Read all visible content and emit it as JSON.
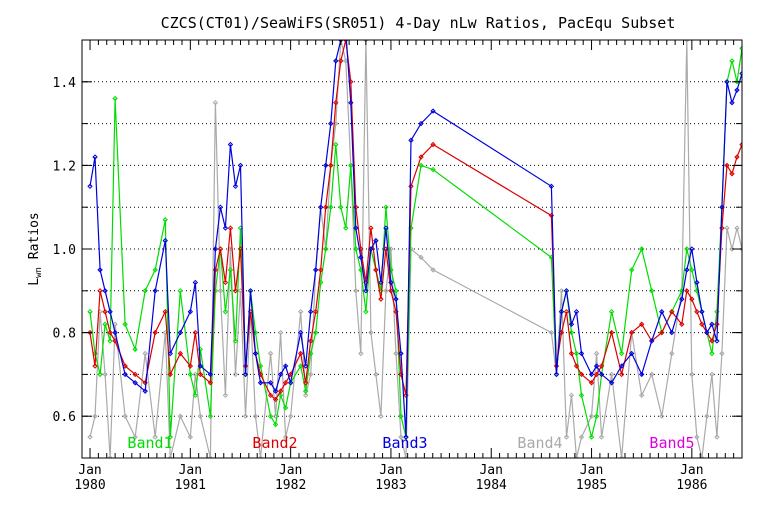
{
  "chart_data": {
    "type": "line",
    "title": "CZCS(CT01)/SeaWiFS(SR051) 4-Day nLw Ratios, PacEqu Subset",
    "ylabel": "L",
    "ylabel_sub": "wn",
    "ylabel_rest": " Ratios",
    "xlim": [
      1979.92,
      1986.5
    ],
    "ylim": [
      0.5,
      1.5
    ],
    "yticks": [
      0.6,
      0.8,
      1.0,
      1.2,
      1.4
    ],
    "ytick_labels": [
      "0.6",
      "0.8",
      "1.0",
      "1.2",
      "1.4"
    ],
    "minor_step": 0.1,
    "xtick_top": [
      "Jan",
      "Jan",
      "Jan",
      "Jan",
      "Jan",
      "Jan",
      "Jan"
    ],
    "xtick_bottom": [
      "1980",
      "1981",
      "1982",
      "1983",
      "1984",
      "1985",
      "1986"
    ],
    "xtick_years": [
      1980,
      1981,
      1982,
      1983,
      1984,
      1985,
      1986
    ],
    "grid": "horizontal dotted",
    "legend_position": "bottom inside plot",
    "series": [
      {
        "name": "Band1",
        "color": "#00dd00",
        "x": [
          1980.0,
          1980.05,
          1980.1,
          1980.15,
          1980.2,
          1980.25,
          1980.35,
          1980.45,
          1980.55,
          1980.65,
          1980.75,
          1980.8,
          1980.9,
          1981.0,
          1981.05,
          1981.1,
          1981.2,
          1981.25,
          1981.3,
          1981.35,
          1981.4,
          1981.45,
          1981.5,
          1981.55,
          1981.6,
          1981.65,
          1981.7,
          1981.8,
          1981.85,
          1981.9,
          1981.95,
          1982.0,
          1982.1,
          1982.15,
          1982.2,
          1982.25,
          1982.3,
          1982.35,
          1982.4,
          1982.45,
          1982.5,
          1982.55,
          1982.6,
          1982.65,
          1982.7,
          1982.75,
          1982.8,
          1982.85,
          1982.9,
          1982.95,
          1983.0,
          1983.05,
          1983.1,
          1983.15,
          1983.2,
          1983.3,
          1983.42,
          1984.6,
          1984.65,
          1984.7,
          1984.75,
          1984.8,
          1984.85,
          1984.9,
          1985.0,
          1985.05,
          1985.1,
          1985.2,
          1985.3,
          1985.4,
          1985.5,
          1985.6,
          1985.7,
          1985.8,
          1985.9,
          1985.95,
          1986.0,
          1986.05,
          1986.1,
          1986.15,
          1986.2,
          1986.25,
          1986.3,
          1986.35,
          1986.4,
          1986.45,
          1986.5
        ],
        "values": [
          0.85,
          0.75,
          0.7,
          0.82,
          0.78,
          1.36,
          0.82,
          0.76,
          0.9,
          0.95,
          1.07,
          0.55,
          0.9,
          0.7,
          0.65,
          0.76,
          0.6,
          0.9,
          1.0,
          0.85,
          0.95,
          0.78,
          1.05,
          0.7,
          0.9,
          0.8,
          0.72,
          0.6,
          0.58,
          0.65,
          0.62,
          0.68,
          0.72,
          0.66,
          0.75,
          0.8,
          0.92,
          1.0,
          1.1,
          1.25,
          1.1,
          1.05,
          1.2,
          1.0,
          0.95,
          0.85,
          1.0,
          0.95,
          0.9,
          1.1,
          0.95,
          0.9,
          0.6,
          0.55,
          1.05,
          1.2,
          1.19,
          0.98,
          0.7,
          0.85,
          0.9,
          0.8,
          0.75,
          0.65,
          0.55,
          0.6,
          0.7,
          0.85,
          0.75,
          0.95,
          1.0,
          0.9,
          0.8,
          0.85,
          0.9,
          1.0,
          0.95,
          0.9,
          0.85,
          0.8,
          0.75,
          0.85,
          1.1,
          1.4,
          1.45,
          1.4,
          1.48
        ]
      },
      {
        "name": "Band2",
        "color": "#dd0000",
        "x": [
          1980.0,
          1980.05,
          1980.1,
          1980.15,
          1980.2,
          1980.25,
          1980.35,
          1980.45,
          1980.55,
          1980.65,
          1980.75,
          1980.8,
          1980.9,
          1981.0,
          1981.05,
          1981.1,
          1981.2,
          1981.25,
          1981.3,
          1981.35,
          1981.4,
          1981.45,
          1981.5,
          1981.55,
          1981.6,
          1981.65,
          1981.7,
          1981.8,
          1981.85,
          1981.9,
          1981.95,
          1982.0,
          1982.1,
          1982.15,
          1982.2,
          1982.25,
          1982.3,
          1982.35,
          1982.4,
          1982.45,
          1982.5,
          1982.55,
          1982.6,
          1982.65,
          1982.7,
          1982.75,
          1982.8,
          1982.85,
          1982.9,
          1982.95,
          1983.0,
          1983.05,
          1983.1,
          1983.15,
          1983.2,
          1983.3,
          1983.42,
          1984.6,
          1984.65,
          1984.7,
          1984.75,
          1984.8,
          1984.85,
          1984.9,
          1985.0,
          1985.05,
          1985.1,
          1985.2,
          1985.3,
          1985.4,
          1985.5,
          1985.6,
          1985.7,
          1985.8,
          1985.9,
          1985.95,
          1986.0,
          1986.05,
          1986.1,
          1986.15,
          1986.2,
          1986.25,
          1986.3,
          1986.35,
          1986.4,
          1986.45,
          1986.5
        ],
        "values": [
          0.8,
          0.72,
          0.9,
          0.85,
          0.8,
          0.78,
          0.72,
          0.7,
          0.68,
          0.8,
          0.85,
          0.7,
          0.75,
          0.72,
          0.8,
          0.7,
          0.68,
          0.95,
          1.0,
          0.92,
          1.05,
          0.9,
          1.0,
          0.72,
          0.85,
          0.75,
          0.7,
          0.65,
          0.64,
          0.66,
          0.68,
          0.7,
          0.75,
          0.68,
          0.78,
          0.85,
          0.95,
          1.1,
          1.2,
          1.35,
          1.45,
          1.5,
          1.4,
          1.1,
          1.0,
          0.92,
          1.05,
          0.95,
          0.88,
          1.0,
          0.9,
          0.85,
          0.7,
          0.65,
          1.15,
          1.22,
          1.25,
          1.08,
          0.72,
          0.8,
          0.85,
          0.75,
          0.72,
          0.7,
          0.68,
          0.7,
          0.72,
          0.8,
          0.7,
          0.8,
          0.82,
          0.78,
          0.8,
          0.85,
          0.82,
          0.9,
          0.88,
          0.85,
          0.82,
          0.8,
          0.78,
          0.82,
          1.05,
          1.2,
          1.18,
          1.22,
          1.25
        ]
      },
      {
        "name": "Band3",
        "color": "#0000dd",
        "x": [
          1980.0,
          1980.05,
          1980.1,
          1980.15,
          1980.2,
          1980.25,
          1980.35,
          1980.45,
          1980.55,
          1980.65,
          1980.75,
          1980.8,
          1980.9,
          1981.0,
          1981.05,
          1981.1,
          1981.2,
          1981.25,
          1981.3,
          1981.35,
          1981.4,
          1981.45,
          1981.5,
          1981.55,
          1981.6,
          1981.65,
          1981.7,
          1981.8,
          1981.85,
          1981.9,
          1981.95,
          1982.0,
          1982.1,
          1982.15,
          1982.2,
          1982.25,
          1982.3,
          1982.35,
          1982.4,
          1982.45,
          1982.5,
          1982.55,
          1982.6,
          1982.65,
          1982.7,
          1982.75,
          1982.8,
          1982.85,
          1982.9,
          1982.95,
          1983.0,
          1983.05,
          1983.1,
          1983.15,
          1983.2,
          1983.3,
          1983.42,
          1984.6,
          1984.65,
          1984.7,
          1984.75,
          1984.8,
          1984.85,
          1984.9,
          1985.0,
          1985.05,
          1985.1,
          1985.2,
          1985.3,
          1985.4,
          1985.5,
          1985.6,
          1985.7,
          1985.8,
          1985.9,
          1985.95,
          1986.0,
          1986.05,
          1986.1,
          1986.15,
          1986.2,
          1986.25,
          1986.3,
          1986.35,
          1986.4,
          1986.45,
          1986.5
        ],
        "values": [
          1.15,
          1.22,
          0.95,
          0.9,
          0.85,
          0.8,
          0.7,
          0.68,
          0.66,
          0.9,
          1.02,
          0.75,
          0.8,
          0.85,
          0.92,
          0.72,
          0.7,
          1.0,
          1.1,
          1.05,
          1.25,
          1.15,
          1.2,
          0.7,
          0.9,
          0.75,
          0.68,
          0.68,
          0.66,
          0.7,
          0.72,
          0.68,
          0.8,
          0.72,
          0.85,
          0.95,
          1.1,
          1.2,
          1.3,
          1.45,
          1.5,
          1.52,
          1.35,
          1.05,
          0.98,
          0.9,
          1.0,
          1.02,
          0.92,
          1.05,
          0.92,
          0.88,
          0.75,
          0.55,
          1.26,
          1.3,
          1.33,
          1.15,
          0.7,
          0.85,
          0.9,
          0.82,
          0.85,
          0.75,
          0.7,
          0.72,
          0.7,
          0.68,
          0.72,
          0.75,
          0.7,
          0.78,
          0.85,
          0.8,
          0.88,
          0.95,
          1.0,
          0.92,
          0.85,
          0.8,
          0.82,
          0.78,
          1.1,
          1.4,
          1.35,
          1.38,
          1.42
        ]
      },
      {
        "name": "Band4",
        "color": "#aaaaaa",
        "x": [
          1980.0,
          1980.05,
          1980.1,
          1980.15,
          1980.2,
          1980.25,
          1980.35,
          1980.45,
          1980.55,
          1980.65,
          1980.75,
          1980.8,
          1980.9,
          1981.0,
          1981.05,
          1981.1,
          1981.2,
          1981.25,
          1981.3,
          1981.35,
          1981.4,
          1981.45,
          1981.5,
          1981.55,
          1981.6,
          1981.65,
          1981.7,
          1981.8,
          1981.85,
          1981.9,
          1981.95,
          1982.0,
          1982.1,
          1982.15,
          1982.2,
          1982.25,
          1982.3,
          1982.35,
          1982.4,
          1982.45,
          1982.5,
          1982.55,
          1982.6,
          1982.65,
          1982.7,
          1982.75,
          1982.8,
          1982.85,
          1982.9,
          1982.95,
          1983.0,
          1983.05,
          1983.1,
          1983.15,
          1983.2,
          1983.3,
          1983.42,
          1984.6,
          1984.65,
          1984.7,
          1984.75,
          1984.8,
          1984.85,
          1984.9,
          1985.0,
          1985.05,
          1985.1,
          1985.2,
          1985.3,
          1985.4,
          1985.5,
          1985.6,
          1985.7,
          1985.8,
          1985.9,
          1985.95,
          1986.0,
          1986.05,
          1986.1,
          1986.15,
          1986.2,
          1986.25,
          1986.3,
          1986.35,
          1986.4,
          1986.45,
          1986.5
        ],
        "values": [
          0.55,
          0.6,
          0.85,
          0.7,
          0.5,
          0.82,
          0.6,
          0.55,
          0.75,
          0.55,
          0.8,
          0.5,
          0.6,
          0.55,
          0.7,
          0.6,
          0.5,
          1.35,
          0.9,
          0.65,
          1.0,
          0.7,
          0.9,
          0.6,
          0.85,
          0.6,
          0.5,
          0.75,
          0.6,
          0.8,
          0.55,
          0.6,
          0.85,
          0.65,
          0.7,
          0.95,
          1.1,
          1.0,
          1.2,
          1.3,
          1.5,
          1.45,
          1.2,
          0.9,
          0.75,
          1.5,
          0.8,
          0.7,
          0.6,
          0.9,
          1.0,
          0.75,
          0.55,
          0.5,
          1.0,
          0.98,
          0.95,
          0.8,
          0.7,
          0.9,
          0.55,
          0.65,
          0.5,
          0.55,
          0.6,
          0.75,
          0.55,
          0.7,
          0.5,
          0.8,
          0.65,
          0.7,
          0.6,
          0.75,
          0.9,
          1.5,
          0.7,
          0.55,
          0.5,
          0.6,
          0.7,
          0.55,
          0.75,
          1.05,
          1.0,
          1.05,
          1.0
        ]
      },
      {
        "name": "Band5",
        "color": "#dd00dd",
        "x": [],
        "values": []
      }
    ]
  }
}
